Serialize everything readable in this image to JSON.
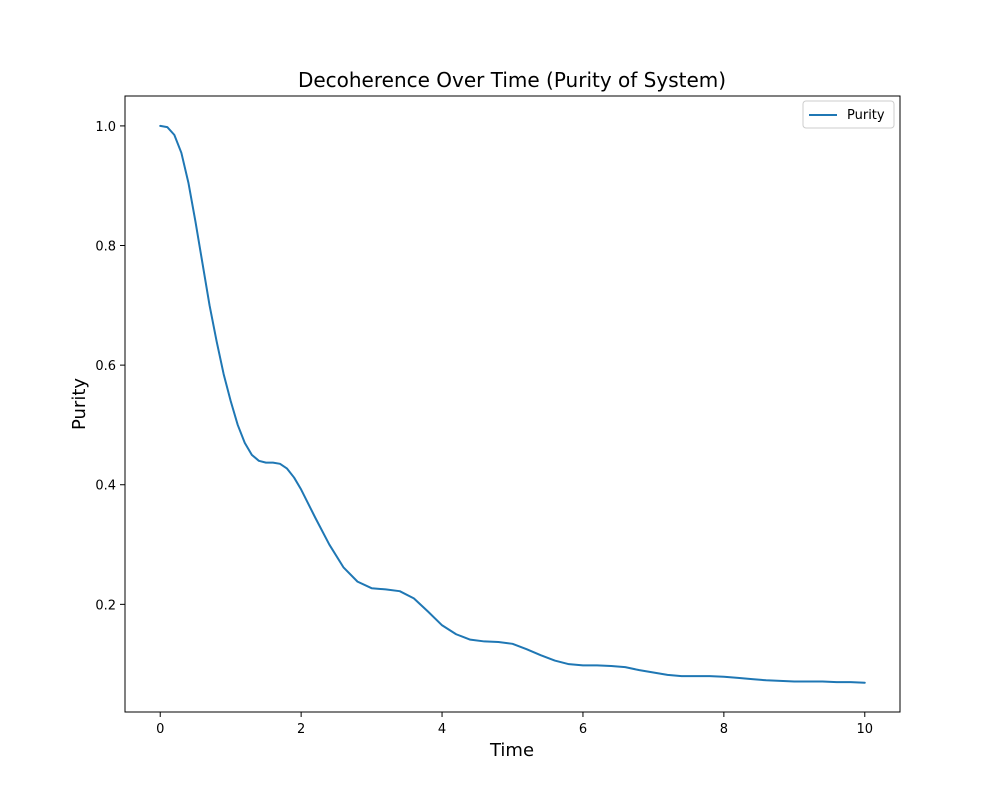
{
  "chart_data": {
    "type": "line",
    "title": "Decoherence Over Time (Purity of System)",
    "xlabel": "Time",
    "ylabel": "Purity",
    "xlim": [
      -0.5,
      10.5
    ],
    "ylim": [
      0.02,
      1.05
    ],
    "xticks": [
      0,
      2,
      4,
      6,
      8,
      10
    ],
    "yticks": [
      0.2,
      0.4,
      0.6,
      0.8,
      1.0
    ],
    "xtick_labels": [
      "0",
      "2",
      "4",
      "6",
      "8",
      "10"
    ],
    "ytick_labels": [
      "0.2",
      "0.4",
      "0.6",
      "0.8",
      "1.0"
    ],
    "grid": false,
    "legend_position": "top-right",
    "series": [
      {
        "name": "Purity",
        "color": "#1f77b4",
        "x": [
          0.0,
          0.1,
          0.2,
          0.3,
          0.4,
          0.5,
          0.6,
          0.7,
          0.8,
          0.9,
          1.0,
          1.1,
          1.2,
          1.3,
          1.4,
          1.5,
          1.6,
          1.7,
          1.8,
          1.9,
          2.0,
          2.2,
          2.4,
          2.6,
          2.8,
          3.0,
          3.2,
          3.4,
          3.6,
          3.8,
          4.0,
          4.2,
          4.4,
          4.6,
          4.8,
          5.0,
          5.2,
          5.4,
          5.6,
          5.8,
          6.0,
          6.2,
          6.4,
          6.6,
          6.8,
          7.0,
          7.2,
          7.4,
          7.6,
          7.8,
          8.0,
          8.2,
          8.4,
          8.6,
          8.8,
          9.0,
          9.2,
          9.4,
          9.6,
          9.8,
          10.0
        ],
        "y": [
          1.0,
          0.998,
          0.985,
          0.955,
          0.905,
          0.84,
          0.77,
          0.7,
          0.64,
          0.585,
          0.54,
          0.5,
          0.47,
          0.45,
          0.44,
          0.437,
          0.437,
          0.435,
          0.427,
          0.412,
          0.392,
          0.345,
          0.3,
          0.262,
          0.238,
          0.227,
          0.225,
          0.222,
          0.21,
          0.188,
          0.165,
          0.15,
          0.141,
          0.138,
          0.137,
          0.134,
          0.125,
          0.115,
          0.106,
          0.1,
          0.098,
          0.098,
          0.097,
          0.095,
          0.09,
          0.086,
          0.082,
          0.08,
          0.08,
          0.08,
          0.079,
          0.077,
          0.075,
          0.073,
          0.072,
          0.071,
          0.071,
          0.071,
          0.07,
          0.07,
          0.069
        ]
      }
    ]
  }
}
